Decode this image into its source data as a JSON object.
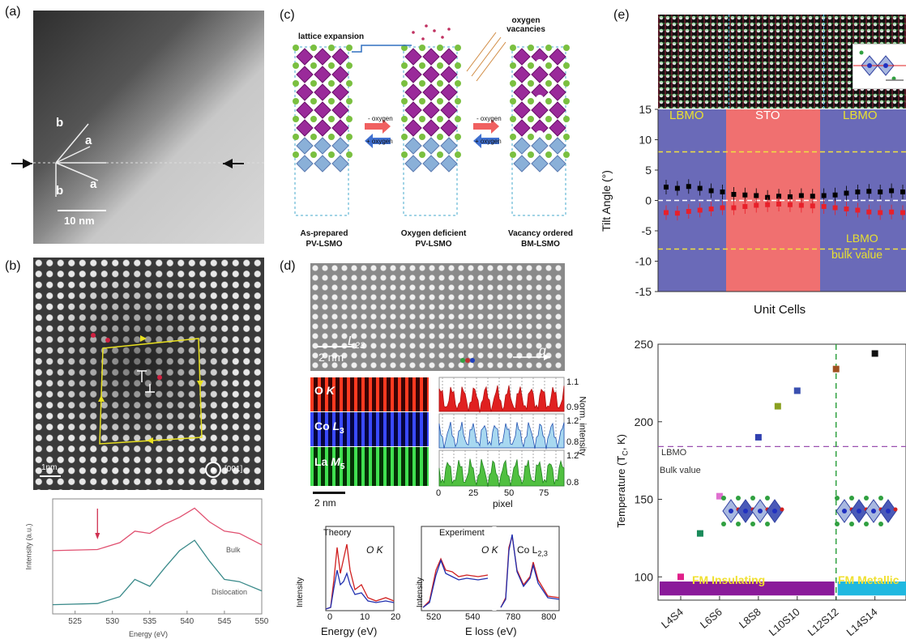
{
  "panels": {
    "a": {
      "label": "(a)",
      "scale_bar": "10 nm",
      "axis_labels": [
        "b",
        "a",
        "b",
        "a"
      ]
    },
    "b": {
      "label": "(b)",
      "scale_bar": "1nm",
      "zone_axis": "[001]",
      "spectrum": {
        "ylabel": "Intensity (a.u.)",
        "xlabel": "Energy (eV)",
        "xticks": [
          "525",
          "530",
          "535",
          "540",
          "545",
          "550"
        ],
        "curve_bulk": "Bulk",
        "curve_dislocation": "Dislocation"
      }
    },
    "c": {
      "label": "(c)",
      "lattice_expansion": "lattice expansion",
      "oxygen_vacancies": "oxygen vacancies",
      "minus_oxygen": "- oxygen",
      "plus_oxygen": "+ oxygen",
      "states": [
        {
          "line1": "As-prepared",
          "line2": "PV-LSMO"
        },
        {
          "line1": "Oxygen deficient",
          "line2": "PV-LSMO"
        },
        {
          "line1": "Vacancy ordered",
          "line2": "BM-LSMO"
        }
      ]
    },
    "d": {
      "label": "(d)",
      "map_label": "L",
      "map_sub": "23",
      "scale_top": "2 nm",
      "q_label": "q",
      "maps": [
        {
          "element": "O",
          "edge": "K",
          "sub": "",
          "top": "1.1",
          "bottom": "0.9"
        },
        {
          "element": "Co",
          "edge": "L",
          "sub": "3",
          "top": "1.2",
          "bottom": "0.8"
        },
        {
          "element": "La",
          "edge": "M",
          "sub": "5",
          "top": "1.2",
          "bottom": "0.8"
        }
      ],
      "norm_label": "Norm. intensity",
      "pixel_label": "pixel",
      "pixel_ticks": [
        "0",
        "25",
        "50",
        "75"
      ],
      "scale_bottom": "2 nm",
      "theory": {
        "title": "Theory",
        "edge_label": "O K",
        "ylabel": "Intensity",
        "xlabel": "Energy (eV)",
        "xticks": [
          "0",
          "10",
          "20"
        ]
      },
      "experiment": {
        "title": "Experiment",
        "ok_label": "O K",
        "co_label": "Co L",
        "co_sub": "2,3",
        "ylabel": "Intensity",
        "xlabel": "E loss (eV)",
        "xticks": [
          "520",
          "540",
          "780",
          "800"
        ]
      }
    },
    "e": {
      "label": "(e)",
      "tilt": {
        "ylabel": "Tilt Angle (°)",
        "xlabel": "Unit Cells",
        "yticks": [
          "15",
          "10",
          "5",
          "0",
          "-5",
          "-10",
          "-15"
        ],
        "regions": [
          "LBMO",
          "STO",
          "LBMO"
        ],
        "bulk_label_1": "LBMO",
        "bulk_label_2": "bulk value"
      },
      "tc": {
        "ylabel": "Temperature (T",
        "ylabel_sub": "C",
        "ylabel_end": ", K)",
        "yticks": [
          "250",
          "200",
          "150",
          "100"
        ],
        "xticks": [
          "L4S4",
          "L6S6",
          "L8S8",
          "L10S10",
          "L12S12",
          "L14S14"
        ],
        "bulk_1": "LBMO",
        "bulk_2": "Bulk value",
        "band_left": "FM Insulating",
        "band_right": "FM Metallic"
      }
    }
  },
  "chart_data": [
    {
      "type": "line",
      "panel": "b",
      "title": "",
      "xlabel": "Energy (eV)",
      "ylabel": "Intensity (a.u.)",
      "xlim": [
        522,
        550
      ],
      "series": [
        {
          "name": "Bulk",
          "x": [
            522,
            528,
            531,
            533,
            535,
            537,
            539,
            541,
            543,
            545,
            547,
            550
          ],
          "y": [
            0.55,
            0.56,
            0.62,
            0.72,
            0.7,
            0.78,
            0.84,
            0.92,
            0.8,
            0.72,
            0.7,
            0.6
          ]
        },
        {
          "name": "Dislocation",
          "x": [
            522,
            528,
            531,
            533,
            535,
            537,
            539,
            541,
            543,
            545,
            547,
            550
          ],
          "y": [
            0.08,
            0.09,
            0.15,
            0.3,
            0.24,
            0.4,
            0.55,
            0.64,
            0.46,
            0.3,
            0.28,
            0.2
          ]
        }
      ]
    },
    {
      "type": "scatter",
      "panel": "e-tilt",
      "xlabel": "Unit Cells",
      "ylabel": "Tilt Angle (°)",
      "ylim": [
        -15,
        15
      ],
      "series": [
        {
          "color": "#000000",
          "values": [
            2.2,
            2.0,
            2.3,
            2.0,
            1.6,
            1.4,
            1.0,
            0.9,
            0.8,
            0.5,
            0.7,
            0.6,
            0.8,
            0.7,
            0.8,
            0.9,
            1.2,
            1.4,
            1.5,
            1.4,
            1.6,
            1.4
          ]
        },
        {
          "color": "#e8202a",
          "values": [
            -2.0,
            -2.1,
            -1.8,
            -1.6,
            -1.4,
            -1.2,
            -1.2,
            -1.0,
            -0.8,
            -0.7,
            -0.6,
            -0.7,
            -0.8,
            -0.9,
            -1.0,
            -1.2,
            -1.4,
            -1.6,
            -1.9,
            -2.0,
            -1.9,
            -2.0
          ]
        }
      ],
      "reference_lines": [
        8,
        -8,
        0
      ]
    },
    {
      "type": "scatter",
      "panel": "e-tc",
      "ylabel": "Temperature (TC, K)",
      "ylim": [
        85,
        250
      ],
      "categories": [
        "L4S4",
        "L6S6",
        "L8S8",
        "L10S10",
        "L12S12",
        "L14S14"
      ],
      "points": [
        {
          "x": 4,
          "y": 100,
          "color": "#e0208a"
        },
        {
          "x": 5,
          "y": 128,
          "color": "#1a8a5a"
        },
        {
          "x": 6,
          "y": 152,
          "color": "#e070d0"
        },
        {
          "x": 8,
          "y": 190,
          "color": "#3040b0"
        },
        {
          "x": 9,
          "y": 210,
          "color": "#8aa020"
        },
        {
          "x": 10,
          "y": 220,
          "color": "#3a50b0"
        },
        {
          "x": 12,
          "y": 234,
          "color": "#a05020"
        },
        {
          "x": 14,
          "y": 244,
          "color": "#111111"
        }
      ],
      "bulk_value": 184
    }
  ]
}
